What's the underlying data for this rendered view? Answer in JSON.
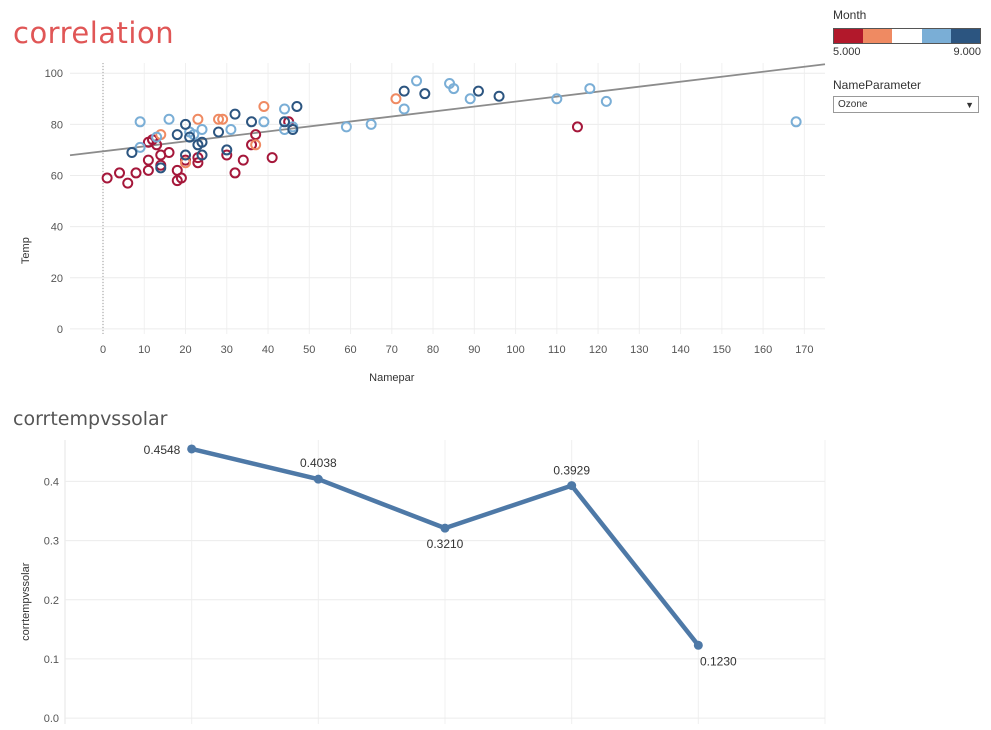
{
  "charts": {
    "correlation_title": "correlation",
    "corrtemp_title": "corrtempvssolar"
  },
  "legend": {
    "title": "Month",
    "min_label": "5.000",
    "max_label": "9.000",
    "colors": [
      "#b2182b",
      "#ef8a62",
      "#ffffff",
      "#7aaed6",
      "#2c5580"
    ]
  },
  "filter": {
    "label": "NameParameter",
    "value": "Ozone"
  },
  "chart_data": [
    {
      "type": "scatter",
      "title": "correlation",
      "xlabel": "Namepar",
      "ylabel": "Temp",
      "xlim": [
        -8,
        175
      ],
      "ylim": [
        -2,
        104
      ],
      "xticks": [
        0,
        10,
        20,
        30,
        40,
        50,
        60,
        70,
        80,
        90,
        100,
        110,
        120,
        130,
        140,
        150,
        160,
        170
      ],
      "yticks": [
        0,
        20,
        40,
        60,
        80,
        100
      ],
      "trendline": {
        "x": [
          -8,
          175
        ],
        "y": [
          67.9,
          103.5
        ]
      },
      "month_colors": {
        "5": "#a5173a",
        "6": "#ef8a62",
        "7": "#7aaed6",
        "8": "#7aaed6",
        "9": "#2c5580"
      },
      "points": [
        {
          "x": 1,
          "y": 59,
          "m": 5
        },
        {
          "x": 4,
          "y": 61,
          "m": 5
        },
        {
          "x": 6,
          "y": 57,
          "m": 5
        },
        {
          "x": 8,
          "y": 61,
          "m": 5
        },
        {
          "x": 11,
          "y": 62,
          "m": 5
        },
        {
          "x": 11,
          "y": 66,
          "m": 5
        },
        {
          "x": 11,
          "y": 73,
          "m": 5
        },
        {
          "x": 12,
          "y": 74,
          "m": 5
        },
        {
          "x": 13,
          "y": 72,
          "m": 5
        },
        {
          "x": 14,
          "y": 68,
          "m": 5
        },
        {
          "x": 14,
          "y": 64,
          "m": 5
        },
        {
          "x": 16,
          "y": 69,
          "m": 5
        },
        {
          "x": 18,
          "y": 62,
          "m": 5
        },
        {
          "x": 18,
          "y": 58,
          "m": 5
        },
        {
          "x": 19,
          "y": 59,
          "m": 5
        },
        {
          "x": 20,
          "y": 66,
          "m": 5
        },
        {
          "x": 23,
          "y": 65,
          "m": 5
        },
        {
          "x": 23,
          "y": 67,
          "m": 5
        },
        {
          "x": 30,
          "y": 68,
          "m": 5
        },
        {
          "x": 32,
          "y": 61,
          "m": 5
        },
        {
          "x": 34,
          "y": 66,
          "m": 5
        },
        {
          "x": 36,
          "y": 72,
          "m": 5
        },
        {
          "x": 37,
          "y": 76,
          "m": 5
        },
        {
          "x": 41,
          "y": 67,
          "m": 5
        },
        {
          "x": 45,
          "y": 81,
          "m": 5
        },
        {
          "x": 115,
          "y": 79,
          "m": 5
        },
        {
          "x": 14,
          "y": 76,
          "m": 6
        },
        {
          "x": 20,
          "y": 65,
          "m": 6
        },
        {
          "x": 23,
          "y": 82,
          "m": 6
        },
        {
          "x": 28,
          "y": 82,
          "m": 6
        },
        {
          "x": 29,
          "y": 82,
          "m": 6
        },
        {
          "x": 37,
          "y": 72,
          "m": 6
        },
        {
          "x": 39,
          "y": 87,
          "m": 6
        },
        {
          "x": 71,
          "y": 90,
          "m": 6
        },
        {
          "x": 9,
          "y": 81,
          "m": 7
        },
        {
          "x": 9,
          "y": 71,
          "m": 7
        },
        {
          "x": 13,
          "y": 75,
          "m": 7
        },
        {
          "x": 16,
          "y": 82,
          "m": 7
        },
        {
          "x": 21,
          "y": 77,
          "m": 7
        },
        {
          "x": 22,
          "y": 76,
          "m": 7
        },
        {
          "x": 24,
          "y": 78,
          "m": 7
        },
        {
          "x": 31,
          "y": 78,
          "m": 7
        },
        {
          "x": 39,
          "y": 81,
          "m": 7
        },
        {
          "x": 44,
          "y": 86,
          "m": 7
        },
        {
          "x": 44,
          "y": 78,
          "m": 7
        },
        {
          "x": 46,
          "y": 79,
          "m": 7
        },
        {
          "x": 59,
          "y": 79,
          "m": 7
        },
        {
          "x": 65,
          "y": 80,
          "m": 7
        },
        {
          "x": 73,
          "y": 86,
          "m": 7
        },
        {
          "x": 76,
          "y": 97,
          "m": 7
        },
        {
          "x": 84,
          "y": 96,
          "m": 7
        },
        {
          "x": 85,
          "y": 94,
          "m": 7
        },
        {
          "x": 89,
          "y": 90,
          "m": 7
        },
        {
          "x": 110,
          "y": 90,
          "m": 7
        },
        {
          "x": 118,
          "y": 94,
          "m": 7
        },
        {
          "x": 122,
          "y": 89,
          "m": 7
        },
        {
          "x": 168,
          "y": 81,
          "m": 7
        },
        {
          "x": 7,
          "y": 69,
          "m": 9
        },
        {
          "x": 14,
          "y": 63,
          "m": 9
        },
        {
          "x": 18,
          "y": 76,
          "m": 9
        },
        {
          "x": 20,
          "y": 68,
          "m": 9
        },
        {
          "x": 20,
          "y": 80,
          "m": 9
        },
        {
          "x": 21,
          "y": 75,
          "m": 9
        },
        {
          "x": 23,
          "y": 72,
          "m": 9
        },
        {
          "x": 24,
          "y": 73,
          "m": 9
        },
        {
          "x": 24,
          "y": 68,
          "m": 9
        },
        {
          "x": 28,
          "y": 77,
          "m": 9
        },
        {
          "x": 30,
          "y": 70,
          "m": 9
        },
        {
          "x": 32,
          "y": 84,
          "m": 9
        },
        {
          "x": 36,
          "y": 81,
          "m": 9
        },
        {
          "x": 44,
          "y": 81,
          "m": 9
        },
        {
          "x": 46,
          "y": 78,
          "m": 9
        },
        {
          "x": 47,
          "y": 87,
          "m": 9
        },
        {
          "x": 73,
          "y": 93,
          "m": 9
        },
        {
          "x": 78,
          "y": 92,
          "m": 9
        },
        {
          "x": 91,
          "y": 93,
          "m": 9
        },
        {
          "x": 96,
          "y": 91,
          "m": 9
        }
      ]
    },
    {
      "type": "line",
      "title": "corrtempvssolar",
      "ylabel": "corrtempvssolar",
      "ylim": [
        -0.01,
        0.47
      ],
      "yticks": [
        0.0,
        0.1,
        0.2,
        0.3,
        0.4
      ],
      "ytick_labels": [
        "0.0",
        "0.1",
        "0.2",
        "0.3",
        "0.4"
      ],
      "series": [
        {
          "values": [
            0.4548,
            0.4038,
            0.321,
            0.3929,
            0.123
          ],
          "labels": [
            "0.4548",
            "0.4038",
            "0.3210",
            "0.3929",
            "0.1230"
          ],
          "color": "#4e79a7"
        }
      ]
    }
  ]
}
